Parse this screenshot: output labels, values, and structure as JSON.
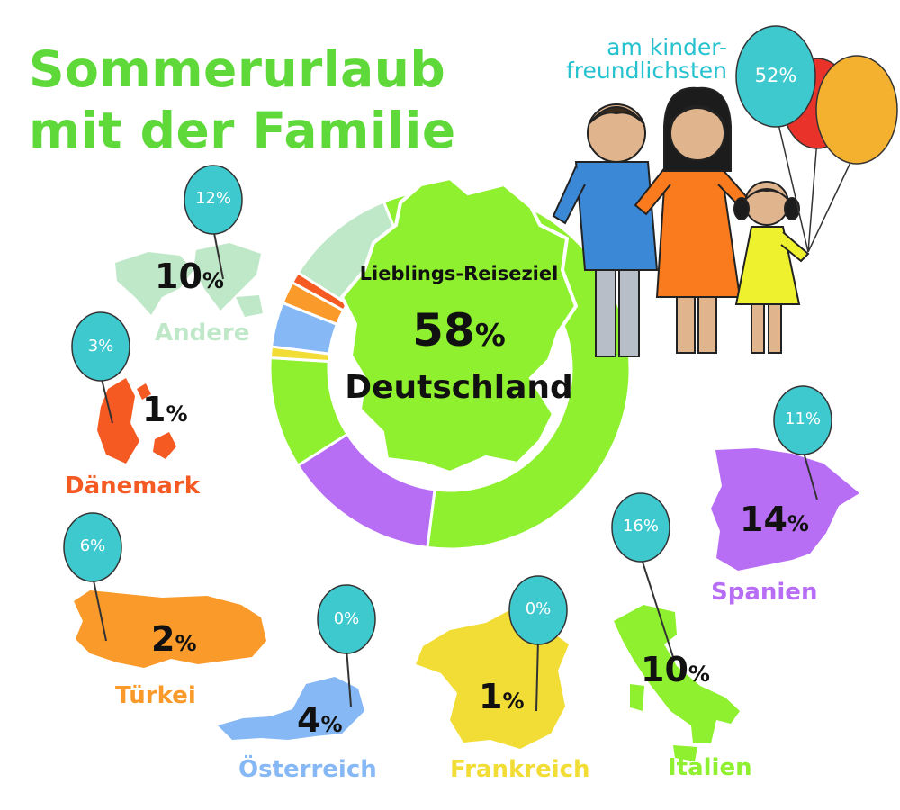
{
  "title": {
    "line1": "Sommerurlaub",
    "line2": "mit der Familie"
  },
  "subtitle": {
    "line1": "am kinder-",
    "line2": "freundlichsten"
  },
  "center": {
    "label": "Lieblings-Reiseziel",
    "value": "58",
    "unit": "%",
    "country": "Deutschland"
  },
  "colors": {
    "title": "#5fd93a",
    "balloon": "#3ec9cf",
    "subtitle": "#27c2cf"
  },
  "family_balloon": "52%",
  "countries": [
    {
      "name": "Andere",
      "value": "10",
      "unit": "%",
      "kid": "12%",
      "color": "#bfe8c9"
    },
    {
      "name": "Dänemark",
      "value": "1",
      "unit": "%",
      "kid": "3%",
      "color": "#f55a23"
    },
    {
      "name": "Türkei",
      "value": "2",
      "unit": "%",
      "kid": "6%",
      "color": "#fa9a2a"
    },
    {
      "name": "Österreich",
      "value": "4",
      "unit": "%",
      "kid": "0%",
      "color": "#86b8f5"
    },
    {
      "name": "Frankreich",
      "value": "1",
      "unit": "%",
      "kid": "0%",
      "color": "#f2dc36"
    },
    {
      "name": "Italien",
      "value": "10",
      "unit": "%",
      "kid": "16%",
      "color": "#8ef02e"
    },
    {
      "name": "Spanien",
      "value": "14",
      "unit": "%",
      "kid": "11%",
      "color": "#b76ef5"
    }
  ],
  "chart_data": {
    "type": "pie",
    "series": [
      {
        "values": [
          58,
          14,
          10,
          1,
          4,
          2,
          1,
          10
        ]
      }
    ],
    "categories": [
      "Deutschland",
      "Spanien",
      "Italien",
      "Frankreich",
      "Österreich",
      "Türkei",
      "Dänemark",
      "Andere"
    ],
    "colors": [
      "#8ef02e",
      "#b76ef5",
      "#8ef02e",
      "#f2dc36",
      "#86b8f5",
      "#fa9a2a",
      "#f55a23",
      "#bfe8c9"
    ],
    "title": "Lieblings-Reiseziel"
  }
}
